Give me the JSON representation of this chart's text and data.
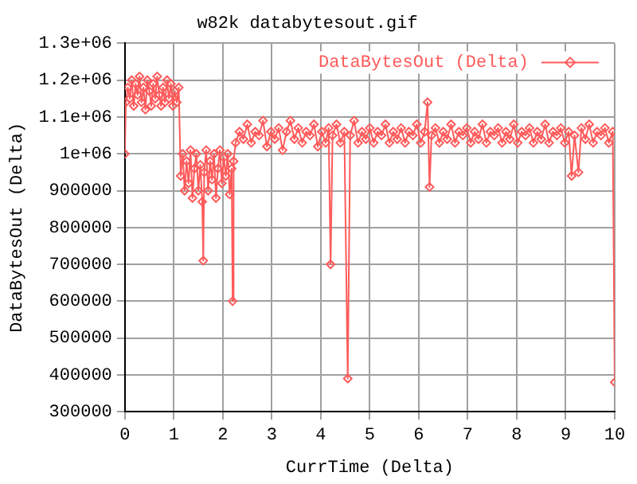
{
  "chart_data": {
    "type": "line",
    "title": "w82k databytesout.gif",
    "xlabel": "CurrTime (Delta)",
    "ylabel": "DataBytesOut (Delta)",
    "xlim": [
      0,
      10
    ],
    "xticks": [
      0,
      1,
      2,
      3,
      4,
      5,
      6,
      7,
      8,
      9,
      10
    ],
    "ylim": [
      300000,
      1300000
    ],
    "yticks": [
      300000,
      400000,
      500000,
      600000,
      700000,
      800000,
      900000,
      {
        "value": 1000000,
        "label": "1e+06"
      },
      {
        "value": 1100000,
        "label": "1.1e+06"
      },
      {
        "value": 1200000,
        "label": "1.2e+06"
      },
      {
        "value": 1300000,
        "label": "1.3e+06"
      }
    ],
    "grid": true,
    "legend": "top right",
    "marker": "diamond",
    "line_style": "solid",
    "series": [
      {
        "name": "DataBytesOut (Delta)",
        "color": "#ff5a5a",
        "x": [
          0,
          0.02,
          0.06,
          0.1,
          0.14,
          0.18,
          0.22,
          0.26,
          0.3,
          0.34,
          0.38,
          0.42,
          0.46,
          0.5,
          0.54,
          0.58,
          0.62,
          0.66,
          0.7,
          0.74,
          0.78,
          0.82,
          0.86,
          0.9,
          0.94,
          0.98,
          1.02,
          1.06,
          1.1,
          1.14,
          1.18,
          1.22,
          1.26,
          1.3,
          1.34,
          1.38,
          1.42,
          1.46,
          1.5,
          1.54,
          1.58,
          1.6,
          1.62,
          1.66,
          1.7,
          1.74,
          1.78,
          1.82,
          1.86,
          1.9,
          1.94,
          1.98,
          2.02,
          2.06,
          2.1,
          2.14,
          2.18,
          2.2,
          2.22,
          2.26,
          2.34,
          2.42,
          2.5,
          2.58,
          2.66,
          2.74,
          2.82,
          2.9,
          2.98,
          3.06,
          3.14,
          3.22,
          3.3,
          3.38,
          3.46,
          3.54,
          3.62,
          3.7,
          3.78,
          3.86,
          3.94,
          4.02,
          4.1,
          4.16,
          4.2,
          4.24,
          4.32,
          4.4,
          4.48,
          4.55,
          4.6,
          4.68,
          4.76,
          4.84,
          4.92,
          5.0,
          5.08,
          5.16,
          5.24,
          5.32,
          5.4,
          5.48,
          5.56,
          5.64,
          5.72,
          5.8,
          5.88,
          5.96,
          6.04,
          6.12,
          6.18,
          6.22,
          6.26,
          6.34,
          6.42,
          6.5,
          6.58,
          6.66,
          6.74,
          6.82,
          6.9,
          6.98,
          7.06,
          7.14,
          7.22,
          7.3,
          7.38,
          7.46,
          7.54,
          7.62,
          7.7,
          7.78,
          7.86,
          7.94,
          8.02,
          8.1,
          8.18,
          8.26,
          8.34,
          8.42,
          8.5,
          8.58,
          8.66,
          8.74,
          8.82,
          8.9,
          8.98,
          9.06,
          9.12,
          9.18,
          9.26,
          9.32,
          9.4,
          9.48,
          9.56,
          9.64,
          9.72,
          9.8,
          9.88,
          9.96,
          10
        ],
        "values": [
          1000000,
          1140000,
          1180000,
          1150000,
          1200000,
          1130000,
          1190000,
          1160000,
          1210000,
          1140000,
          1180000,
          1120000,
          1200000,
          1170000,
          1130000,
          1190000,
          1150000,
          1210000,
          1160000,
          1130000,
          1180000,
          1140000,
          1200000,
          1150000,
          1190000,
          1130000,
          1170000,
          1140000,
          1180000,
          940000,
          1000000,
          900000,
          980000,
          920000,
          1010000,
          880000,
          960000,
          1000000,
          900000,
          970000,
          870000,
          710000,
          950000,
          1010000,
          900000,
          980000,
          930000,
          1000000,
          880000,
          960000,
          1010000,
          920000,
          990000,
          940000,
          1000000,
          890000,
          960000,
          600000,
          980000,
          1030000,
          1060000,
          1040000,
          1080000,
          1030000,
          1060000,
          1050000,
          1090000,
          1020000,
          1060000,
          1040000,
          1070000,
          1010000,
          1060000,
          1090000,
          1040000,
          1070000,
          1030000,
          1060000,
          1050000,
          1080000,
          1020000,
          1060000,
          1030000,
          1070000,
          700000,
          1050000,
          1080000,
          1030000,
          1060000,
          390000,
          1050000,
          1090000,
          1030000,
          1060000,
          1040000,
          1070000,
          1030000,
          1060000,
          1050000,
          1080000,
          1030000,
          1060000,
          1040000,
          1070000,
          1030000,
          1060000,
          1050000,
          1080000,
          1030000,
          1060000,
          1140000,
          910000,
          1050000,
          1070000,
          1030000,
          1060000,
          1040000,
          1080000,
          1030000,
          1060000,
          1050000,
          1070000,
          1030000,
          1060000,
          1040000,
          1080000,
          1030000,
          1060000,
          1050000,
          1070000,
          1030000,
          1060000,
          1040000,
          1080000,
          1030000,
          1060000,
          1050000,
          1070000,
          1030000,
          1060000,
          1040000,
          1080000,
          1030000,
          1060000,
          1050000,
          1070000,
          1030000,
          1060000,
          940000,
          1050000,
          950000,
          1070000,
          1040000,
          1080000,
          1030000,
          1060000,
          1050000,
          1070000,
          1030000,
          1060000,
          380000
        ]
      }
    ]
  }
}
